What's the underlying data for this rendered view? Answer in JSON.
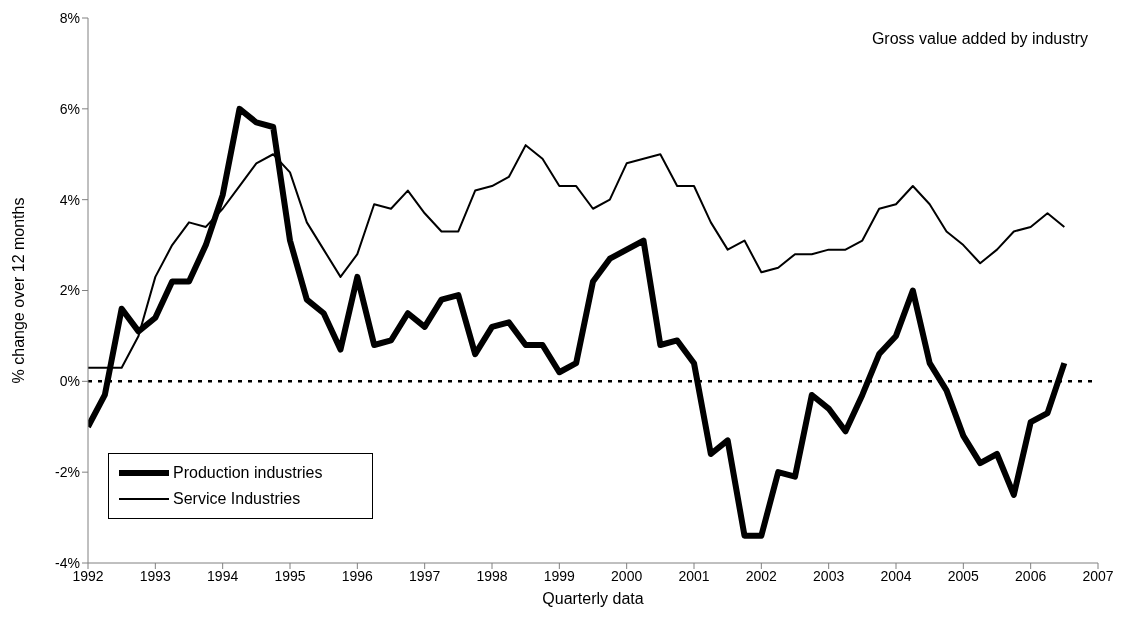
{
  "chart_data": {
    "type": "line",
    "title": "Gross value added by industry",
    "xlabel": "Quarterly data",
    "ylabel": "% change over 12 months",
    "x": [
      1992,
      1992.25,
      1992.5,
      1992.75,
      1993,
      1993.25,
      1993.5,
      1993.75,
      1994,
      1994.25,
      1994.5,
      1994.75,
      1995,
      1995.25,
      1995.5,
      1995.75,
      1996,
      1996.25,
      1996.5,
      1996.75,
      1997,
      1997.25,
      1997.5,
      1997.75,
      1998,
      1998.25,
      1998.5,
      1998.75,
      1999,
      1999.25,
      1999.5,
      1999.75,
      2000,
      2000.25,
      2000.5,
      2000.75,
      2001,
      2001.25,
      2001.5,
      2001.75,
      2002,
      2002.25,
      2002.5,
      2002.75,
      2003,
      2003.25,
      2003.5,
      2003.75,
      2004,
      2004.25,
      2004.5,
      2004.75,
      2005,
      2005.25,
      2005.5,
      2005.75,
      2006,
      2006.25,
      2006.5
    ],
    "series": [
      {
        "name": "Production industries",
        "color": "#000000",
        "values": [
          -1.0,
          -0.3,
          1.6,
          1.1,
          1.4,
          2.2,
          2.2,
          3.0,
          4.1,
          6.0,
          5.7,
          5.6,
          3.1,
          1.8,
          1.5,
          0.7,
          2.3,
          0.8,
          0.9,
          1.5,
          1.2,
          1.8,
          1.9,
          0.6,
          1.2,
          1.3,
          0.8,
          0.8,
          0.2,
          0.4,
          2.2,
          2.7,
          2.9,
          3.1,
          0.8,
          0.9,
          0.4,
          -1.6,
          -1.3,
          -3.4,
          -3.4,
          -2.0,
          -2.1,
          -0.3,
          -0.6,
          -1.1,
          -0.3,
          0.6,
          1.0,
          2.0,
          0.4,
          -0.2,
          -1.2,
          -1.8,
          -1.6,
          -2.5,
          -0.9,
          -0.7,
          0.4
        ]
      },
      {
        "name": "Service Industries",
        "color": "#000000",
        "values": [
          0.3,
          0.3,
          0.3,
          1.0,
          2.3,
          3.0,
          3.5,
          3.4,
          3.8,
          4.3,
          4.8,
          5.0,
          4.6,
          3.5,
          2.9,
          2.3,
          2.8,
          3.9,
          3.8,
          4.2,
          3.7,
          3.3,
          3.3,
          4.2,
          4.3,
          4.5,
          5.2,
          4.9,
          4.3,
          4.3,
          3.8,
          4.0,
          4.8,
          4.9,
          5.0,
          4.3,
          4.3,
          3.5,
          2.9,
          3.1,
          2.4,
          2.5,
          2.8,
          2.8,
          2.9,
          2.9,
          3.1,
          3.8,
          3.9,
          4.3,
          3.9,
          3.3,
          3.0,
          2.6,
          2.9,
          3.3,
          3.4,
          3.7,
          3.4
        ]
      }
    ],
    "xlim": [
      1992,
      2007
    ],
    "xticks": [
      1992,
      1993,
      1994,
      1995,
      1996,
      1997,
      1998,
      1999,
      2000,
      2001,
      2002,
      2003,
      2004,
      2005,
      2006,
      2007
    ],
    "ylim": [
      -4,
      8
    ],
    "yticks": [
      {
        "value": -4,
        "label": "-4%"
      },
      {
        "value": -2,
        "label": "-2%"
      },
      {
        "value": 0,
        "label": "0%"
      },
      {
        "value": 2,
        "label": "2%"
      },
      {
        "value": 4,
        "label": "4%"
      },
      {
        "value": 6,
        "label": "6%"
      },
      {
        "value": 8,
        "label": "8%"
      }
    ],
    "ref_lines": [
      {
        "axis": "y",
        "value": 0,
        "color": "#000000",
        "line_style": "dotted"
      }
    ],
    "grid": false,
    "legend": "bottom left",
    "marker": "none",
    "line_style": "solid"
  }
}
